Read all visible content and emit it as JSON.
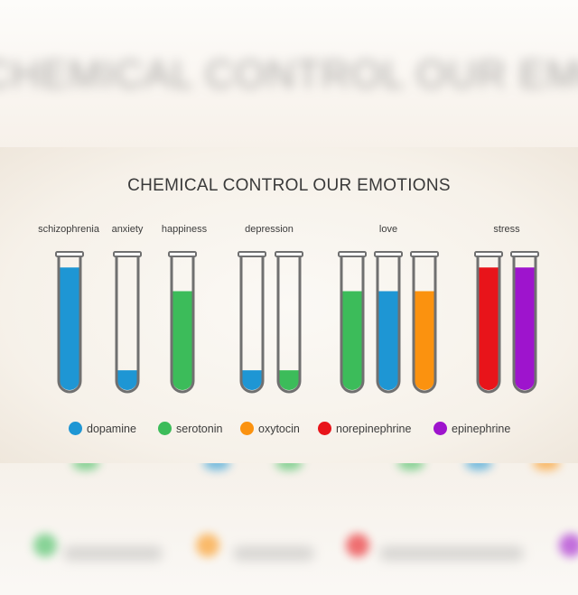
{
  "title": "CHEMICAL CONTROL OUR EMOTIONS",
  "chemicals": {
    "dopamine": {
      "label": "dopamine",
      "color": "#1e96d4"
    },
    "serotonin": {
      "label": "serotonin",
      "color": "#3cbc5a"
    },
    "oxytocin": {
      "label": "oxytocin",
      "color": "#fb920f"
    },
    "norepinephrine": {
      "label": "norepinephrine",
      "color": "#e8141a"
    },
    "epinephrine": {
      "label": "epinephrine",
      "color": "#9e14cd"
    }
  },
  "legend_order": [
    "dopamine",
    "serotonin",
    "oxytocin",
    "norepinephrine",
    "epinephrine"
  ],
  "emotions": [
    {
      "label": "schizophrenia",
      "tubes": [
        {
          "chemical": "dopamine",
          "level": 0.93
        }
      ]
    },
    {
      "label": "anxiety",
      "tubes": [
        {
          "chemical": "dopamine",
          "level": 0.15
        }
      ]
    },
    {
      "label": "happiness",
      "tubes": [
        {
          "chemical": "serotonin",
          "level": 0.75
        }
      ]
    },
    {
      "label": "depression",
      "tubes": [
        {
          "chemical": "dopamine",
          "level": 0.15
        },
        {
          "chemical": "serotonin",
          "level": 0.15
        }
      ]
    },
    {
      "label": "love",
      "tubes": [
        {
          "chemical": "serotonin",
          "level": 0.75
        },
        {
          "chemical": "dopamine",
          "level": 0.75
        },
        {
          "chemical": "oxytocin",
          "level": 0.75
        }
      ]
    },
    {
      "label": "stress",
      "tubes": [
        {
          "chemical": "norepinephrine",
          "level": 0.93
        },
        {
          "chemical": "epinephrine",
          "level": 0.93
        }
      ]
    }
  ]
}
